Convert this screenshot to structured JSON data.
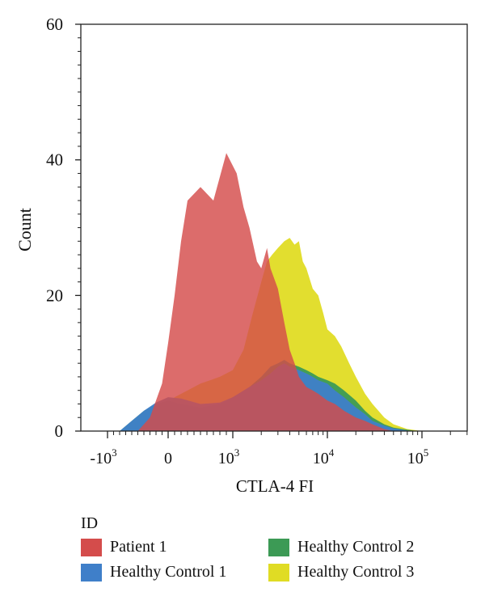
{
  "chart_data": {
    "type": "area",
    "xlabel": "CTLA-4 FI",
    "ylabel": "Count",
    "ylim": [
      0,
      60
    ],
    "yticks": [
      0,
      20,
      40,
      60
    ],
    "xticks": [
      {
        "label": "-10",
        "sup": "3"
      },
      {
        "label": "0",
        "sup": ""
      },
      {
        "label": "10",
        "sup": "3"
      },
      {
        "label": "10",
        "sup": "4"
      },
      {
        "label": "10",
        "sup": "5"
      }
    ],
    "x_scale": "logicle",
    "legend_title": "ID",
    "legend_placement": "bottom",
    "series": [
      {
        "name": "Healthy Control 3",
        "color": "#e0dc24",
        "x": [
          -800,
          -500,
          -300,
          -100,
          0,
          100,
          300,
          500,
          800,
          1000,
          1300,
          1600,
          2000,
          2300,
          2600,
          3000,
          3500,
          4000,
          4500,
          5000,
          5500,
          6000,
          7000,
          8000,
          9000,
          10000,
          12000,
          14000,
          17000,
          20000,
          25000,
          30000,
          40000,
          50000,
          70000,
          90000,
          100000
        ],
        "y": [
          0,
          0.5,
          1.5,
          3,
          4,
          5,
          6,
          7,
          8,
          9,
          12,
          17,
          22,
          25,
          26,
          27,
          28,
          28.5,
          27.5,
          28,
          25,
          24,
          21,
          20,
          17.5,
          15,
          14,
          12.5,
          10,
          8,
          5.5,
          4,
          2,
          1,
          0.3,
          0.1,
          0
        ]
      },
      {
        "name": "Healthy Control 2",
        "color": "#3c9a55",
        "x": [
          -800,
          -600,
          -400,
          -200,
          0,
          200,
          500,
          800,
          1000,
          1500,
          2000,
          2500,
          3000,
          3500,
          4000,
          5000,
          6000,
          7000,
          8000,
          10000,
          12000,
          15000,
          20000,
          25000,
          30000,
          40000,
          50000,
          70000,
          90000
        ],
        "y": [
          0,
          1.5,
          3,
          4,
          4.5,
          4,
          3.5,
          4,
          5,
          6.5,
          8,
          9.5,
          10,
          10.5,
          10,
          9.5,
          9,
          8.5,
          8,
          7.5,
          7,
          6,
          4.5,
          3,
          2,
          1,
          0.5,
          0.2,
          0
        ]
      },
      {
        "name": "Healthy Control 1",
        "color": "#3f7fc9",
        "x": [
          -800,
          -600,
          -400,
          -200,
          0,
          200,
          500,
          800,
          1000,
          1500,
          2000,
          2500,
          3000,
          3500,
          4000,
          5000,
          6000,
          7000,
          8000,
          10000,
          12000,
          15000,
          20000,
          25000,
          30000,
          40000,
          50000,
          70000,
          90000
        ],
        "y": [
          0,
          1.5,
          3,
          4.2,
          5,
          4.8,
          4,
          4.2,
          5,
          6.5,
          7.5,
          8.5,
          9.5,
          10,
          9.5,
          9,
          8.5,
          8,
          7.5,
          7,
          6,
          5,
          3.5,
          2.5,
          1.5,
          0.8,
          0.4,
          0.1,
          0
        ]
      },
      {
        "name": "Patient 1",
        "color": "#d44c4b",
        "x": [
          -500,
          -300,
          -100,
          0,
          100,
          200,
          300,
          500,
          700,
          900,
          1100,
          1300,
          1500,
          1800,
          2000,
          2300,
          2500,
          3000,
          3500,
          4000,
          4500,
          5000,
          6000,
          7000,
          8000,
          10000,
          12000,
          15000,
          20000,
          25000,
          30000,
          40000,
          50000
        ],
        "y": [
          0,
          2,
          7,
          13,
          20,
          28,
          34,
          36,
          34,
          41,
          38,
          33,
          30,
          25,
          24,
          27,
          24,
          21,
          16,
          12,
          10,
          8,
          6.5,
          6,
          5.5,
          4.5,
          4,
          3,
          2,
          1.5,
          1,
          0.3,
          0
        ]
      }
    ]
  }
}
